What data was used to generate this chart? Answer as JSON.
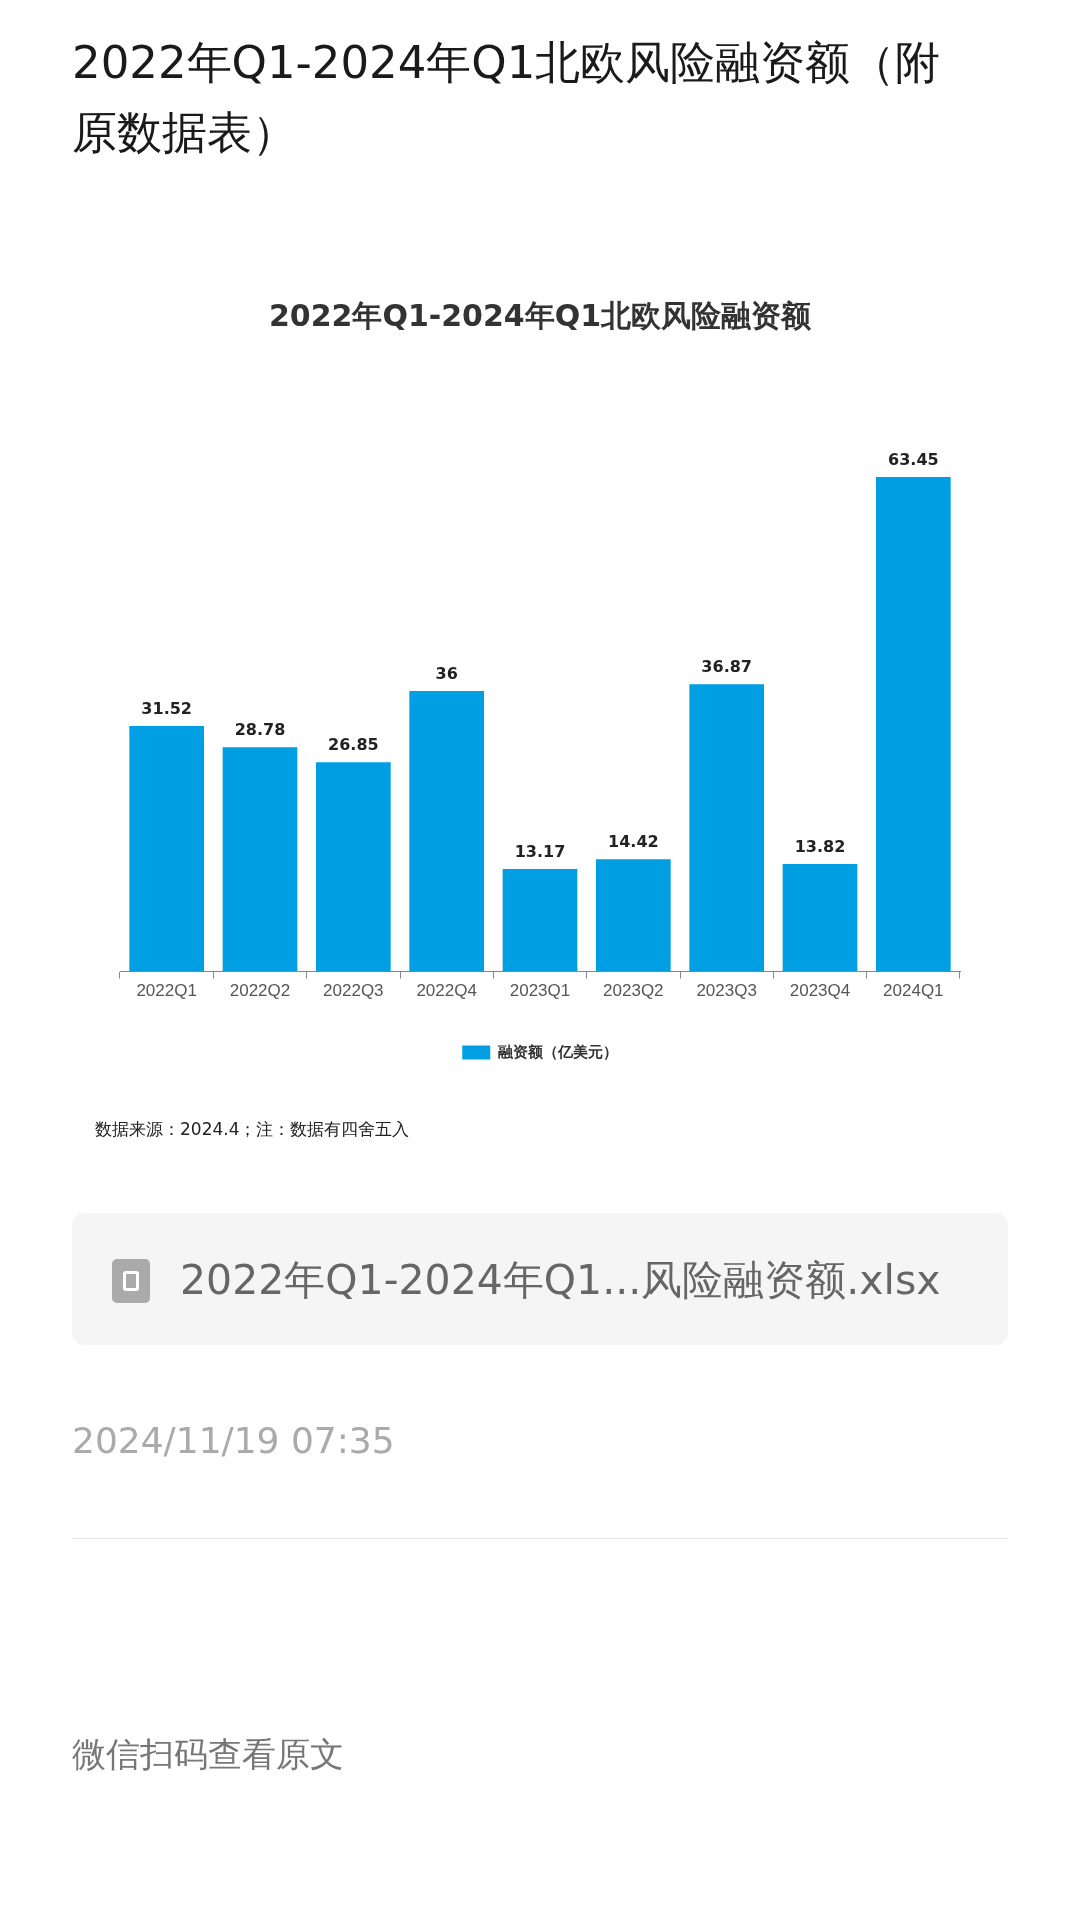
{
  "chart_data": {
    "type": "bar",
    "title": "2022年Q1-2024年Q1北欧风险融资额（附原数据表）",
    "subtitle": "2022年Q1-2024年Q1北欧风险融资额",
    "categories": [
      "2022Q1",
      "2022Q2",
      "2022Q3",
      "2022Q4",
      "2023Q1",
      "2023Q2",
      "2023Q3",
      "2023Q4",
      "2024Q1"
    ],
    "series": [
      {
        "name": "融资额（亿美元）",
        "color": "#009fe3",
        "values": [
          31.52,
          28.78,
          26.85,
          36,
          13.17,
          14.42,
          36.87,
          13.82,
          63.45
        ]
      }
    ],
    "data_labels": true,
    "legend": "bottom",
    "tick_labels": "x",
    "annotations": [
      "数据来源：2024.4；注：数据有四舍五入",
      "2022年Q1-2024年Q1...风险融资额.xlsx",
      "2024/11/19 07:35",
      "微信扫码查看原文"
    ]
  }
}
